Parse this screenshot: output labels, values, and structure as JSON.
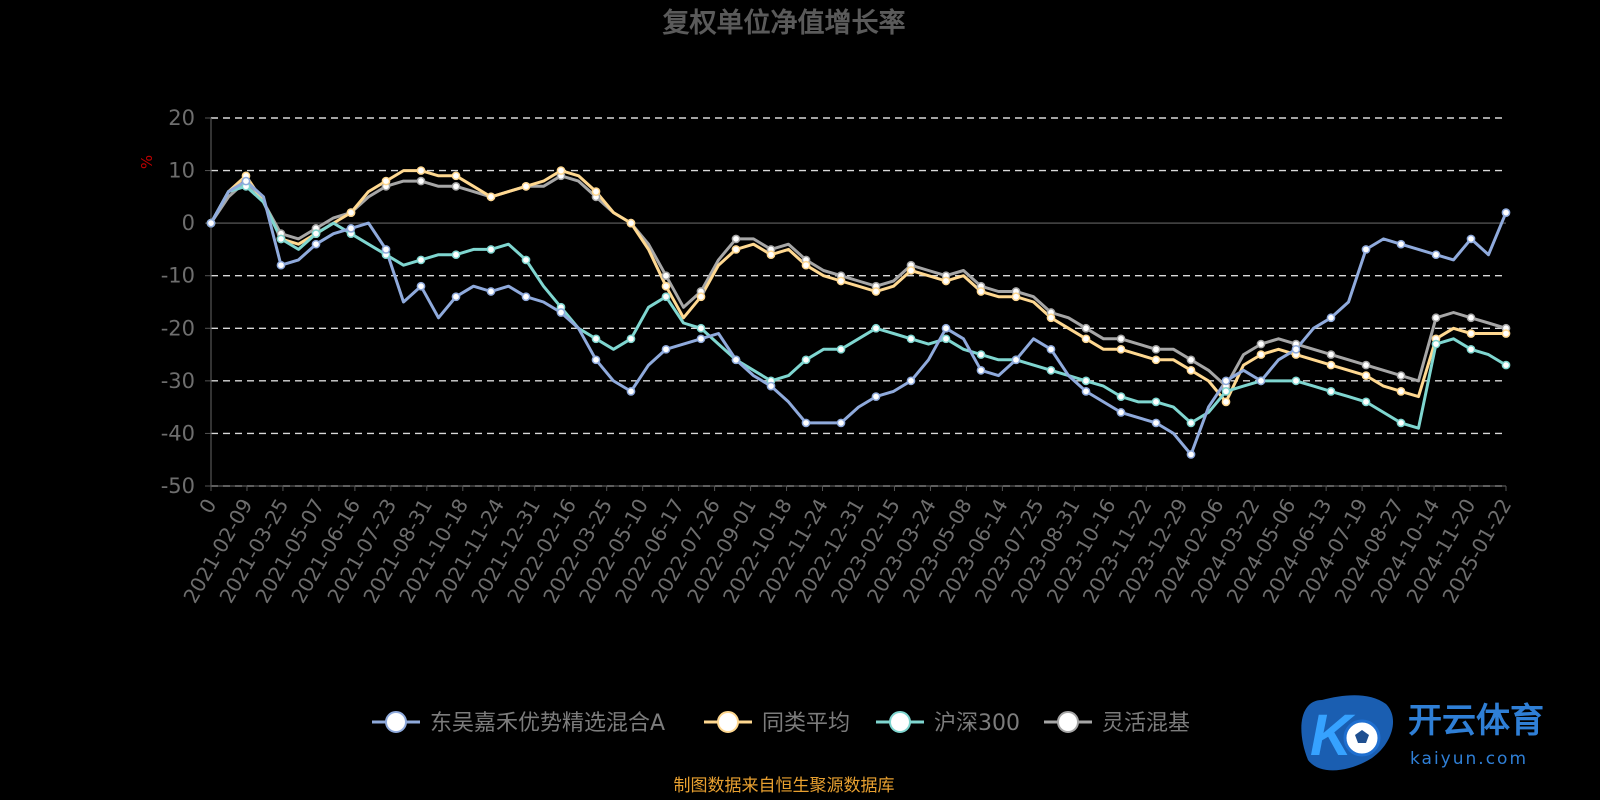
{
  "chart_data": {
    "type": "line",
    "title": "复权单位净值增长率",
    "ylabel": "%",
    "ylim": [
      -50,
      20
    ],
    "yticks": [
      20,
      10,
      0,
      -10,
      -20,
      -30,
      -40,
      -50
    ],
    "grid": true,
    "legend_position": "bottom",
    "xlabels": [
      "0",
      "2021-02-09",
      "2021-03-25",
      "2021-05-07",
      "2021-06-16",
      "2021-07-23",
      "2021-08-31",
      "2021-10-18",
      "2021-11-24",
      "2021-12-31",
      "2022-02-16",
      "2022-03-25",
      "2022-05-10",
      "2022-06-17",
      "2022-07-26",
      "2022-09-01",
      "2022-10-18",
      "2022-11-24",
      "2022-12-31",
      "2023-02-15",
      "2023-03-24",
      "2023-05-08",
      "2023-06-14",
      "2023-07-25",
      "2023-08-31",
      "2023-10-16",
      "2023-11-22",
      "2023-12-29",
      "2024-02-06",
      "2024-03-22",
      "2024-05-06",
      "2024-06-13",
      "2024-07-19",
      "2024-08-27",
      "2024-10-14",
      "2024-11-20",
      "2025-01-22"
    ],
    "series": [
      {
        "name": "东吴嘉禾优势精选混合A",
        "color": "#8faadc",
        "values": [
          0,
          6,
          8,
          5,
          -8,
          -7,
          -4,
          -2,
          -1,
          0,
          -5,
          -15,
          -12,
          -18,
          -14,
          -12,
          -13,
          -12,
          -14,
          -15,
          -17,
          -20,
          -26,
          -30,
          -32,
          -27,
          -24,
          -23,
          -22,
          -21,
          -26,
          -29,
          -31,
          -34,
          -38,
          -38,
          -38,
          -35,
          -33,
          -32,
          -30,
          -26,
          -20,
          -22,
          -28,
          -29,
          -26,
          -22,
          -24,
          -29,
          -32,
          -34,
          -36,
          -37,
          -38,
          -40,
          -44,
          -35,
          -30,
          -28,
          -30,
          -26,
          -24,
          -20,
          -18,
          -15,
          -5,
          -3,
          -4,
          -5,
          -6,
          -7,
          -3,
          -6,
          2
        ]
      },
      {
        "name": "同类平均",
        "color": "#ffd890",
        "values": [
          0,
          6,
          9,
          4,
          -3,
          -4,
          -2,
          0,
          2,
          6,
          8,
          10,
          10,
          9,
          9,
          7,
          5,
          6,
          7,
          8,
          10,
          9,
          6,
          2,
          0,
          -5,
          -12,
          -18,
          -14,
          -8,
          -5,
          -4,
          -6,
          -5,
          -8,
          -10,
          -11,
          -12,
          -13,
          -12,
          -9,
          -10,
          -11,
          -10,
          -13,
          -14,
          -14,
          -15,
          -18,
          -20,
          -22,
          -24,
          -24,
          -25,
          -26,
          -26,
          -28,
          -30,
          -34,
          -27,
          -25,
          -24,
          -25,
          -26,
          -27,
          -28,
          -29,
          -31,
          -32,
          -33,
          -22,
          -20,
          -21,
          -21,
          -21
        ]
      },
      {
        "name": "沪深300",
        "color": "#7fd6d0",
        "values": [
          0,
          6,
          7,
          4,
          -3,
          -5,
          -2,
          0,
          -2,
          -4,
          -6,
          -8,
          -7,
          -6,
          -6,
          -5,
          -5,
          -4,
          -7,
          -12,
          -16,
          -20,
          -22,
          -24,
          -22,
          -16,
          -14,
          -19,
          -20,
          -23,
          -26,
          -28,
          -30,
          -29,
          -26,
          -24,
          -24,
          -22,
          -20,
          -21,
          -22,
          -23,
          -22,
          -24,
          -25,
          -26,
          -26,
          -27,
          -28,
          -29,
          -30,
          -31,
          -33,
          -34,
          -34,
          -35,
          -38,
          -36,
          -32,
          -31,
          -30,
          -30,
          -30,
          -31,
          -32,
          -33,
          -34,
          -36,
          -38,
          -39,
          -23,
          -22,
          -24,
          -25,
          -27
        ]
      },
      {
        "name": "灵活混基",
        "color": "#a6a6a6",
        "values": [
          0,
          5,
          8,
          4,
          -2,
          -3,
          -1,
          1,
          2,
          5,
          7,
          8,
          8,
          7,
          7,
          6,
          5,
          6,
          7,
          7,
          9,
          8,
          5,
          2,
          0,
          -4,
          -10,
          -16,
          -13,
          -7,
          -3,
          -3,
          -5,
          -4,
          -7,
          -9,
          -10,
          -11,
          -12,
          -11,
          -8,
          -9,
          -10,
          -9,
          -12,
          -13,
          -13,
          -14,
          -17,
          -18,
          -20,
          -22,
          -22,
          -23,
          -24,
          -24,
          -26,
          -28,
          -31,
          -25,
          -23,
          -22,
          -23,
          -24,
          -25,
          -26,
          -27,
          -28,
          -29,
          -30,
          -18,
          -17,
          -18,
          -19,
          -20
        ]
      }
    ]
  },
  "footer": {
    "source": "制图数据来自恒生聚源数据库",
    "logo_word": "开云体育",
    "logo_url": "kaiyun.com"
  }
}
